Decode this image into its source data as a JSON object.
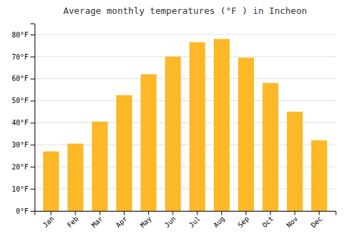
{
  "chart_data": {
    "type": "bar",
    "title": "Average monthly temperatures (°F ) in Incheon",
    "categories": [
      "Jan",
      "Feb",
      "Mar",
      "Apr",
      "May",
      "Jun",
      "Jul",
      "Aug",
      "Sep",
      "Oct",
      "Nov",
      "Dec"
    ],
    "values": [
      27,
      30.5,
      40.5,
      52.5,
      62,
      70,
      76.5,
      78,
      69.5,
      58,
      45,
      32
    ],
    "color": "#FDB827",
    "ylim": [
      0,
      85
    ],
    "yticks": [
      {
        "value": 0,
        "label": "0°F"
      },
      {
        "value": 10,
        "label": "10°F"
      },
      {
        "value": 20,
        "label": "20°F"
      },
      {
        "value": 30,
        "label": "30°F"
      },
      {
        "value": 40,
        "label": "40°F"
      },
      {
        "value": 50,
        "label": "50°F"
      },
      {
        "value": 60,
        "label": "60°F"
      },
      {
        "value": 70,
        "label": "70°F"
      },
      {
        "value": 80,
        "label": "80°F"
      }
    ],
    "grid": true
  }
}
